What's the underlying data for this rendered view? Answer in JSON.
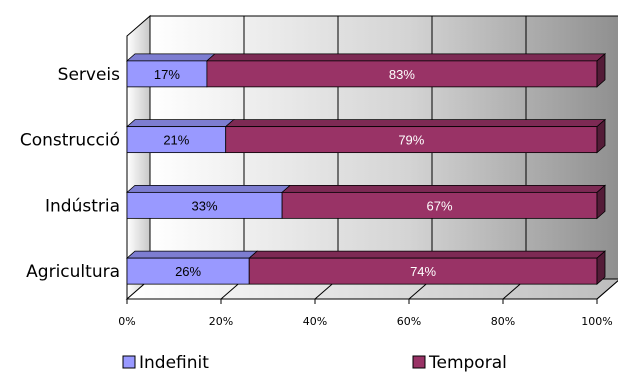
{
  "chart_data": {
    "type": "bar",
    "orientation": "horizontal",
    "stacked": "percent",
    "categories": [
      "Serveis",
      "Construcció",
      "Indústria",
      "Agricultura"
    ],
    "series": [
      {
        "name": "Indefinit",
        "values": [
          17,
          21,
          33,
          26
        ],
        "labels": [
          "17%",
          "21%",
          "33%",
          "26%"
        ],
        "color": "#9999FF"
      },
      {
        "name": "Temporal",
        "values": [
          83,
          79,
          67,
          74
        ],
        "labels": [
          "83%",
          "79%",
          "67%",
          "74%"
        ],
        "color": "#993366"
      }
    ],
    "xticks": [
      "0%",
      "20%",
      "40%",
      "60%",
      "80%",
      "100%"
    ],
    "xlim": [
      0,
      100
    ],
    "grid": true,
    "legend": "bottom",
    "title": "",
    "xlabel": "",
    "ylabel": ""
  }
}
